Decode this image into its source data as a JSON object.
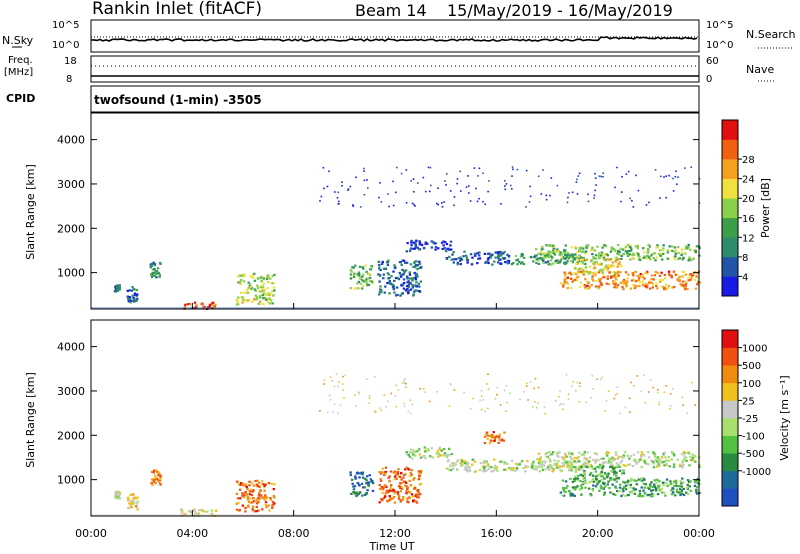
{
  "header": {
    "title": "Rankin Inlet (fitACF)",
    "beam": "Beam 14",
    "dates": "15/May/2019 - 16/May/2019"
  },
  "status_panels": {
    "nsky": {
      "label": "N.Sky",
      "ticks": [
        "10^5",
        "10^0"
      ]
    },
    "nsearch": {
      "label": "N.Search",
      "ticks": [
        "10^5",
        "10^0"
      ]
    },
    "freq": {
      "label_top": "Freq.",
      "label_bottom": "[MHz]",
      "ticks": [
        "18",
        "8"
      ]
    },
    "nave": {
      "label": "Nave",
      "ticks": [
        "60",
        "0"
      ]
    },
    "cpid": {
      "label": "CPID",
      "mode": "twofsound (1-min)  -3505"
    }
  },
  "chart_data": [
    {
      "type": "heatmap",
      "name": "power",
      "ylabel": "Slant Range [km]",
      "yticks": [
        "1000",
        "2000",
        "3000",
        "4000"
      ],
      "ylim": [
        180,
        4600
      ],
      "xlim": [
        0,
        24
      ],
      "colorbar": {
        "label": "Power [dB]",
        "ticks": [
          "4",
          "8",
          "12",
          "16",
          "20",
          "24",
          "28"
        ],
        "colors": [
          "#1a1ae6",
          "#2255a8",
          "#2e8c6e",
          "#3c9e4a",
          "#8ad04a",
          "#f0e040",
          "#f5a020",
          "#f06010",
          "#e01010"
        ]
      },
      "echo_regions": [
        {
          "t0": 0.9,
          "t1": 1.1,
          "r0": 600,
          "r1": 750,
          "level": 0.25
        },
        {
          "t0": 1.4,
          "t1": 1.8,
          "r0": 350,
          "r1": 700,
          "level": 0.2
        },
        {
          "t0": 2.3,
          "t1": 2.7,
          "r0": 900,
          "r1": 1250,
          "level": 0.3
        },
        {
          "t0": 3.5,
          "t1": 4.9,
          "r0": 200,
          "r1": 350,
          "level": 0.85
        },
        {
          "t0": 5.7,
          "t1": 7.2,
          "r0": 300,
          "r1": 1000,
          "level": 0.55
        },
        {
          "t0": 10.2,
          "t1": 11.1,
          "r0": 650,
          "r1": 1200,
          "level": 0.45
        },
        {
          "t0": 11.3,
          "t1": 13.0,
          "r0": 500,
          "r1": 1300,
          "level": 0.2
        },
        {
          "t0": 12.4,
          "t1": 14.2,
          "r0": 1500,
          "r1": 1750,
          "level": 0.1
        },
        {
          "t0": 14.0,
          "t1": 16.5,
          "r0": 1200,
          "r1": 1500,
          "level": 0.15
        },
        {
          "t0": 16.5,
          "t1": 19.5,
          "r0": 1200,
          "r1": 1450,
          "level": 0.35
        },
        {
          "t0": 17.5,
          "t1": 24.0,
          "r0": 1300,
          "r1": 1650,
          "level": 0.45
        },
        {
          "t0": 18.5,
          "t1": 24.0,
          "r0": 650,
          "r1": 1050,
          "level": 0.75
        },
        {
          "t0": 19.0,
          "t1": 21.0,
          "r0": 1000,
          "r1": 1350,
          "level": 0.6
        },
        {
          "t0": 9.0,
          "t1": 24.0,
          "r0": 2500,
          "r1": 3400,
          "level": 0.05
        }
      ]
    },
    {
      "type": "heatmap",
      "name": "velocity",
      "ylabel": "Slant Range [km]",
      "yticks": [
        "1000",
        "2000",
        "3000",
        "4000"
      ],
      "ylim": [
        180,
        4600
      ],
      "xlim": [
        0,
        24
      ],
      "xlabel": "Time UT",
      "xticks": [
        "00:00",
        "04:00",
        "08:00",
        "12:00",
        "16:00",
        "20:00",
        "00:00"
      ],
      "colorbar": {
        "label": "Velocity [m s⁻¹]",
        "ticks": [
          "1000",
          "500",
          "100",
          "25",
          "-25",
          "-100",
          "-500",
          "-1000"
        ],
        "colors": [
          "#2050c0",
          "#206a9a",
          "#2a8a40",
          "#52c040",
          "#a8e070",
          "#c8c8c8",
          "#f0c020",
          "#f08a10",
          "#f05010",
          "#e01010"
        ]
      },
      "echo_regions": [
        {
          "t0": 0.9,
          "t1": 1.1,
          "r0": 600,
          "r1": 750,
          "level": 0.5
        },
        {
          "t0": 1.4,
          "t1": 1.8,
          "r0": 350,
          "r1": 700,
          "level": 0.6
        },
        {
          "t0": 2.3,
          "t1": 2.7,
          "r0": 900,
          "r1": 1250,
          "level": 0.75
        },
        {
          "t0": 3.5,
          "t1": 4.9,
          "r0": 200,
          "r1": 350,
          "level": 0.55
        },
        {
          "t0": 5.7,
          "t1": 7.2,
          "r0": 300,
          "r1": 1000,
          "level": 0.8
        },
        {
          "t0": 10.2,
          "t1": 11.1,
          "r0": 650,
          "r1": 1200,
          "level": 0.15
        },
        {
          "t0": 11.3,
          "t1": 13.0,
          "r0": 500,
          "r1": 1300,
          "level": 0.8
        },
        {
          "t0": 12.4,
          "t1": 14.2,
          "r0": 1500,
          "r1": 1750,
          "level": 0.5
        },
        {
          "t0": 14.0,
          "t1": 16.5,
          "r0": 1200,
          "r1": 1500,
          "level": 0.5
        },
        {
          "t0": 15.5,
          "t1": 16.3,
          "r0": 1850,
          "r1": 2100,
          "level": 0.8
        },
        {
          "t0": 16.5,
          "t1": 19.5,
          "r0": 1200,
          "r1": 1450,
          "level": 0.5
        },
        {
          "t0": 17.5,
          "t1": 24.0,
          "r0": 1300,
          "r1": 1650,
          "level": 0.5
        },
        {
          "t0": 18.5,
          "t1": 24.0,
          "r0": 650,
          "r1": 1050,
          "level": 0.3
        },
        {
          "t0": 19.0,
          "t1": 21.0,
          "r0": 1000,
          "r1": 1350,
          "level": 0.35
        },
        {
          "t0": 9.0,
          "t1": 24.0,
          "r0": 2500,
          "r1": 3400,
          "level": 0.6
        }
      ]
    }
  ]
}
